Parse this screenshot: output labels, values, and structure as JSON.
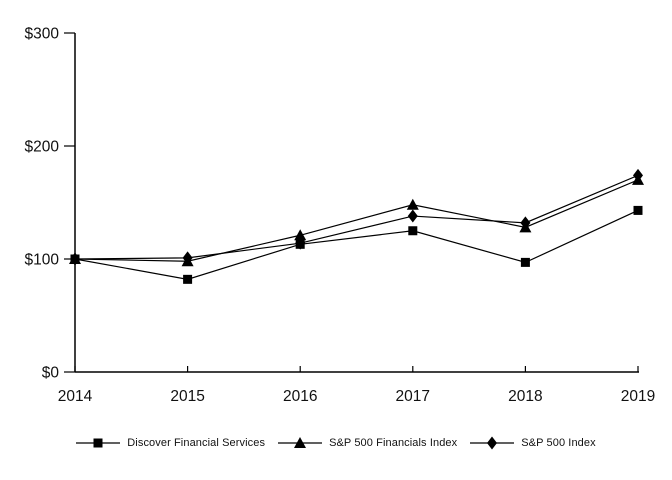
{
  "chart_data": {
    "type": "line",
    "title": "",
    "xlabel": "",
    "ylabel": "",
    "x_labels": [
      "2014",
      "2015",
      "2016",
      "2017",
      "2018",
      "2019"
    ],
    "y_tick_labels": [
      "$0",
      "$100",
      "$200",
      "$300"
    ],
    "y_tick_values": [
      0,
      100,
      200,
      300
    ],
    "ylim": [
      0,
      300
    ],
    "grid": false,
    "legend_position": "bottom",
    "line_color": "#000000",
    "text_color": "#111111",
    "background_color": "#ffffff",
    "series": [
      {
        "name": "Discover Financial Services",
        "marker": "square",
        "values": [
          100,
          82,
          113,
          125,
          97,
          143
        ]
      },
      {
        "name": "S&P 500 Financials Index",
        "marker": "triangle",
        "values": [
          100,
          98,
          121,
          148,
          128,
          170
        ]
      },
      {
        "name": "S&P 500 Index",
        "marker": "diamond",
        "values": [
          100,
          101,
          114,
          138,
          132,
          174
        ]
      }
    ]
  }
}
